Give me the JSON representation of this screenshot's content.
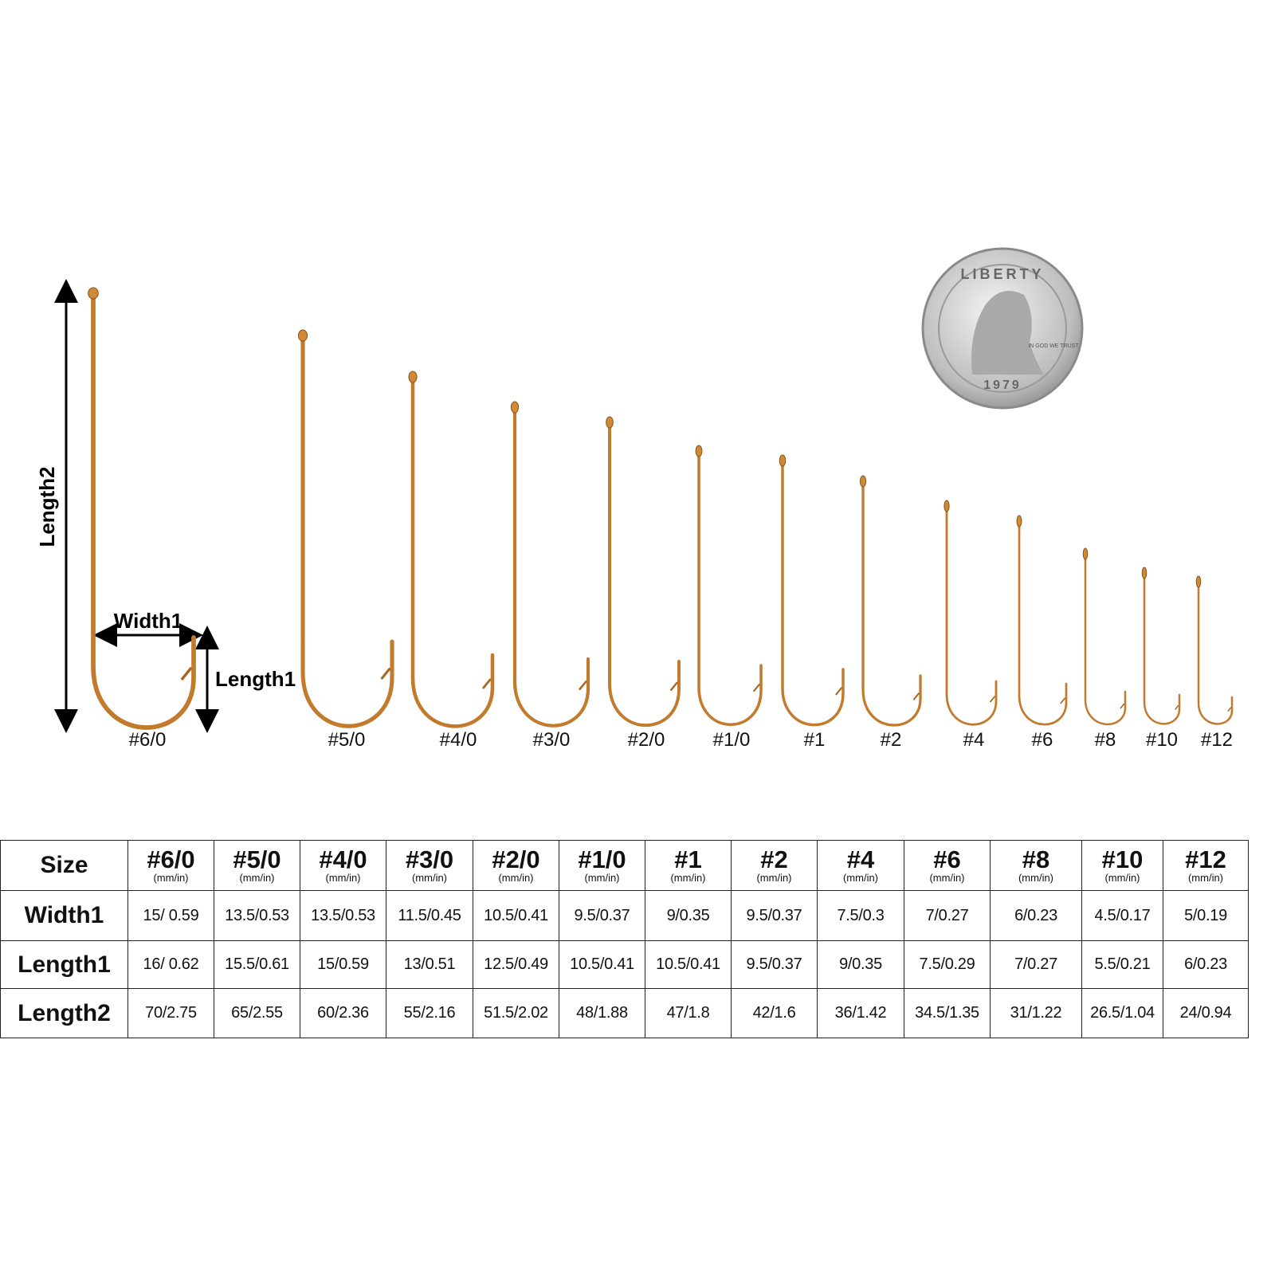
{
  "diagram": {
    "dimension_labels": {
      "length2": "Length2",
      "width1": "Width1",
      "length1": "Length1"
    },
    "hooks": [
      "#6/0",
      "#5/0",
      "#4/0",
      "#3/0",
      "#2/0",
      "#1/0",
      "#1",
      "#2",
      "#4",
      "#6",
      "#8",
      "#10",
      "#12"
    ],
    "coin": {
      "legend": "LIBERTY",
      "motto": "IN GOD WE TRUST",
      "year": "1979"
    }
  },
  "table": {
    "header": {
      "label": "Size",
      "unit": "(mm/in)",
      "sizes": [
        "#6/0",
        "#5/0",
        "#4/0",
        "#3/0",
        "#2/0",
        "#1/0",
        "#1",
        "#2",
        "#4",
        "#6",
        "#8",
        "#10",
        "#12"
      ]
    },
    "rows": [
      [
        "Width1",
        "15/ 0.59",
        "13.5/0.53",
        "13.5/0.53",
        "11.5/0.45",
        "10.5/0.41",
        "9.5/0.37",
        "9/0.35",
        "9.5/0.37",
        "7.5/0.3",
        "7/0.27",
        "6/0.23",
        "4.5/0.17",
        "5/0.19"
      ],
      [
        "Length1",
        "16/ 0.62",
        "15.5/0.61",
        "15/0.59",
        "13/0.51",
        "12.5/0.49",
        "10.5/0.41",
        "10.5/0.41",
        "9.5/0.37",
        "9/0.35",
        "7.5/0.29",
        "7/0.27",
        "5.5/0.21",
        "6/0.23"
      ],
      [
        "Length2",
        "70/2.75",
        "65/2.55",
        "60/2.36",
        "55/2.16",
        "51.5/2.02",
        "48/1.88",
        "47/1.8",
        "42/1.6",
        "36/1.42",
        "34.5/1.35",
        "31/1.22",
        "26.5/1.04",
        "24/0.94"
      ]
    ]
  }
}
